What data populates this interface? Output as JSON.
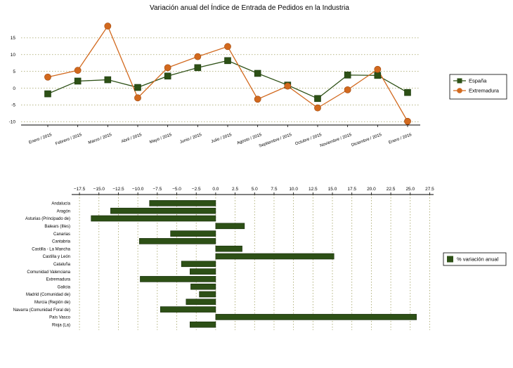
{
  "chart_data": [
    {
      "type": "line",
      "title": "Variación anual del Índice de Entrada de Pedidos en la Industria",
      "categories": [
        "Enero / 2015",
        "Febrero / 2015",
        "Marzo / 2015",
        "Abril / 2015",
        "Mayo / 2015",
        "Junio / 2015",
        "Julio / 2015",
        "Agosto / 2015",
        "Septiembre / 2015",
        "Octubre / 2015",
        "Noviembre / 2015",
        "Diciembre / 2015",
        "Enero / 2016"
      ],
      "ylim": [
        -11,
        20
      ],
      "yticks": [
        -10,
        -5,
        0,
        5,
        10,
        15
      ],
      "grid": true,
      "legend_position": "right",
      "series": [
        {
          "name": "España",
          "color": "#2d5016",
          "marker": "square",
          "values": [
            -1.7,
            2.1,
            2.5,
            0.2,
            3.6,
            6.1,
            8.2,
            4.4,
            0.9,
            -3.1,
            3.9,
            3.8,
            -1.3
          ]
        },
        {
          "name": "Extremadura",
          "color": "#d2691e",
          "marker": "circle",
          "values": [
            3.3,
            5.3,
            18.5,
            -2.9,
            6.1,
            9.4,
            12.4,
            -3.3,
            0.6,
            -5.9,
            -0.5,
            5.6,
            -9.9
          ]
        }
      ]
    },
    {
      "type": "bar",
      "orientation": "horizontal",
      "categories": [
        "Andalucía",
        "Aragón",
        "Asturias (Principado de)",
        "Balears (Illes)",
        "Canarias",
        "Cantabria",
        "Castilla - La Mancha",
        "Castilla y León",
        "Cataluña",
        "Comunidad Valenciana",
        "Extremadura",
        "Galicia",
        "Madrid (Comunidad de)",
        "Murcia (Región de)",
        "Navarra (Comunidad Foral de)",
        "País Vasco",
        "Rioja (La)"
      ],
      "series": [
        {
          "name": "% variación anual",
          "color": "#2d5016",
          "values": [
            -8.5,
            -13.5,
            -16.0,
            3.7,
            -5.8,
            -9.8,
            3.4,
            15.2,
            -4.4,
            -3.3,
            -9.7,
            -3.2,
            -2.1,
            -3.8,
            -7.1,
            25.8,
            -3.3
          ]
        }
      ],
      "xlim": [
        -18.5,
        28
      ],
      "xticks": [
        -17.5,
        -15.0,
        -12.5,
        -10.0,
        -7.5,
        -5.0,
        -2.5,
        0.0,
        2.5,
        5.0,
        7.5,
        10.0,
        12.5,
        15.0,
        17.5,
        20.0,
        22.5,
        25.0,
        27.5
      ],
      "grid": true,
      "legend_position": "right"
    }
  ]
}
